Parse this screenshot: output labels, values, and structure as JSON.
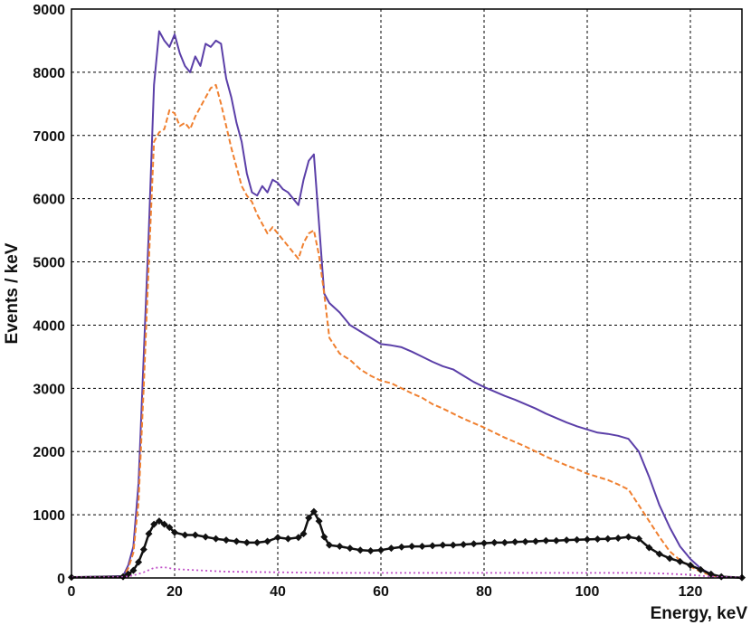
{
  "chart_data": {
    "type": "line",
    "title": "",
    "xlabel": "Energy, keV",
    "ylabel": "Events / keV",
    "xlim": [
      0,
      130
    ],
    "ylim": [
      0,
      9000
    ],
    "x_ticks": [
      0,
      20,
      40,
      60,
      80,
      100,
      120
    ],
    "y_ticks": [
      0,
      1000,
      2000,
      3000,
      4000,
      5000,
      6000,
      7000,
      8000,
      9000
    ],
    "grid": true,
    "legend": "none",
    "series": [
      {
        "color": "#5b3fa8",
        "style": "solid",
        "marker": "none",
        "points": [
          [
            0,
            10
          ],
          [
            10,
            30
          ],
          [
            11,
            200
          ],
          [
            12,
            500
          ],
          [
            13,
            1500
          ],
          [
            14,
            3500
          ],
          [
            15,
            5500
          ],
          [
            16,
            7800
          ],
          [
            17,
            8650
          ],
          [
            18,
            8500
          ],
          [
            19,
            8400
          ],
          [
            20,
            8600
          ],
          [
            21,
            8300
          ],
          [
            22,
            8100
          ],
          [
            23,
            8000
          ],
          [
            24,
            8250
          ],
          [
            25,
            8100
          ],
          [
            26,
            8450
          ],
          [
            27,
            8400
          ],
          [
            28,
            8500
          ],
          [
            29,
            8450
          ],
          [
            30,
            7900
          ],
          [
            31,
            7600
          ],
          [
            32,
            7200
          ],
          [
            33,
            6900
          ],
          [
            34,
            6400
          ],
          [
            35,
            6100
          ],
          [
            36,
            6050
          ],
          [
            37,
            6200
          ],
          [
            38,
            6100
          ],
          [
            39,
            6300
          ],
          [
            40,
            6250
          ],
          [
            41,
            6150
          ],
          [
            42,
            6100
          ],
          [
            43,
            6000
          ],
          [
            44,
            5900
          ],
          [
            45,
            6300
          ],
          [
            46,
            6600
          ],
          [
            47,
            6700
          ],
          [
            48,
            5600
          ],
          [
            49,
            4500
          ],
          [
            50,
            4350
          ],
          [
            52,
            4200
          ],
          [
            54,
            4000
          ],
          [
            56,
            3900
          ],
          [
            58,
            3800
          ],
          [
            60,
            3700
          ],
          [
            62,
            3680
          ],
          [
            64,
            3650
          ],
          [
            66,
            3580
          ],
          [
            68,
            3500
          ],
          [
            70,
            3420
          ],
          [
            72,
            3350
          ],
          [
            74,
            3300
          ],
          [
            76,
            3200
          ],
          [
            78,
            3100
          ],
          [
            80,
            3020
          ],
          [
            82,
            2950
          ],
          [
            84,
            2880
          ],
          [
            86,
            2820
          ],
          [
            88,
            2750
          ],
          [
            90,
            2680
          ],
          [
            92,
            2600
          ],
          [
            94,
            2530
          ],
          [
            96,
            2460
          ],
          [
            98,
            2400
          ],
          [
            100,
            2350
          ],
          [
            102,
            2300
          ],
          [
            104,
            2280
          ],
          [
            106,
            2250
          ],
          [
            108,
            2200
          ],
          [
            110,
            2000
          ],
          [
            112,
            1600
          ],
          [
            114,
            1150
          ],
          [
            116,
            800
          ],
          [
            118,
            500
          ],
          [
            120,
            300
          ],
          [
            122,
            150
          ],
          [
            124,
            60
          ],
          [
            126,
            20
          ],
          [
            130,
            5
          ]
        ]
      },
      {
        "color": "#f08030",
        "style": "dashed",
        "marker": "none",
        "points": [
          [
            0,
            10
          ],
          [
            10,
            20
          ],
          [
            11,
            150
          ],
          [
            12,
            400
          ],
          [
            13,
            1200
          ],
          [
            14,
            3000
          ],
          [
            15,
            5000
          ],
          [
            16,
            6900
          ],
          [
            17,
            7050
          ],
          [
            18,
            7100
          ],
          [
            19,
            7400
          ],
          [
            20,
            7350
          ],
          [
            21,
            7150
          ],
          [
            22,
            7200
          ],
          [
            23,
            7100
          ],
          [
            24,
            7300
          ],
          [
            25,
            7450
          ],
          [
            26,
            7600
          ],
          [
            27,
            7750
          ],
          [
            28,
            7800
          ],
          [
            29,
            7500
          ],
          [
            30,
            7150
          ],
          [
            31,
            6800
          ],
          [
            32,
            6500
          ],
          [
            33,
            6200
          ],
          [
            34,
            6050
          ],
          [
            35,
            5950
          ],
          [
            36,
            5750
          ],
          [
            37,
            5600
          ],
          [
            38,
            5450
          ],
          [
            39,
            5550
          ],
          [
            40,
            5450
          ],
          [
            41,
            5350
          ],
          [
            42,
            5250
          ],
          [
            43,
            5150
          ],
          [
            44,
            5050
          ],
          [
            45,
            5300
          ],
          [
            46,
            5450
          ],
          [
            47,
            5500
          ],
          [
            48,
            5100
          ],
          [
            49,
            4500
          ],
          [
            50,
            3800
          ],
          [
            52,
            3550
          ],
          [
            54,
            3450
          ],
          [
            56,
            3300
          ],
          [
            58,
            3200
          ],
          [
            60,
            3120
          ],
          [
            62,
            3080
          ],
          [
            64,
            3000
          ],
          [
            66,
            2920
          ],
          [
            68,
            2850
          ],
          [
            70,
            2750
          ],
          [
            72,
            2680
          ],
          [
            74,
            2600
          ],
          [
            76,
            2520
          ],
          [
            78,
            2450
          ],
          [
            80,
            2380
          ],
          [
            82,
            2300
          ],
          [
            84,
            2220
          ],
          [
            86,
            2150
          ],
          [
            88,
            2080
          ],
          [
            90,
            2000
          ],
          [
            92,
            1920
          ],
          [
            94,
            1850
          ],
          [
            96,
            1780
          ],
          [
            98,
            1720
          ],
          [
            100,
            1650
          ],
          [
            102,
            1600
          ],
          [
            104,
            1550
          ],
          [
            106,
            1480
          ],
          [
            108,
            1400
          ],
          [
            110,
            1150
          ],
          [
            112,
            900
          ],
          [
            114,
            650
          ],
          [
            116,
            420
          ],
          [
            118,
            280
          ],
          [
            120,
            180
          ],
          [
            122,
            100
          ],
          [
            124,
            40
          ],
          [
            126,
            15
          ],
          [
            130,
            5
          ]
        ]
      },
      {
        "color": "#111111",
        "style": "solid",
        "marker": "diamond",
        "points": [
          [
            0,
            10
          ],
          [
            10,
            20
          ],
          [
            11,
            60
          ],
          [
            12,
            120
          ],
          [
            13,
            250
          ],
          [
            14,
            450
          ],
          [
            15,
            700
          ],
          [
            16,
            850
          ],
          [
            17,
            900
          ],
          [
            18,
            850
          ],
          [
            19,
            800
          ],
          [
            20,
            720
          ],
          [
            22,
            680
          ],
          [
            24,
            680
          ],
          [
            26,
            650
          ],
          [
            28,
            620
          ],
          [
            30,
            600
          ],
          [
            32,
            580
          ],
          [
            34,
            560
          ],
          [
            36,
            560
          ],
          [
            38,
            580
          ],
          [
            40,
            640
          ],
          [
            42,
            620
          ],
          [
            44,
            640
          ],
          [
            45,
            700
          ],
          [
            46,
            950
          ],
          [
            47,
            1050
          ],
          [
            48,
            900
          ],
          [
            49,
            650
          ],
          [
            50,
            520
          ],
          [
            52,
            500
          ],
          [
            54,
            470
          ],
          [
            56,
            440
          ],
          [
            58,
            430
          ],
          [
            60,
            440
          ],
          [
            62,
            470
          ],
          [
            64,
            490
          ],
          [
            66,
            500
          ],
          [
            68,
            500
          ],
          [
            70,
            510
          ],
          [
            72,
            520
          ],
          [
            74,
            520
          ],
          [
            76,
            530
          ],
          [
            78,
            540
          ],
          [
            80,
            550
          ],
          [
            82,
            560
          ],
          [
            84,
            560
          ],
          [
            86,
            570
          ],
          [
            88,
            575
          ],
          [
            90,
            580
          ],
          [
            92,
            590
          ],
          [
            94,
            590
          ],
          [
            96,
            600
          ],
          [
            98,
            605
          ],
          [
            100,
            610
          ],
          [
            102,
            615
          ],
          [
            104,
            620
          ],
          [
            106,
            630
          ],
          [
            108,
            650
          ],
          [
            110,
            620
          ],
          [
            112,
            480
          ],
          [
            114,
            380
          ],
          [
            116,
            310
          ],
          [
            118,
            260
          ],
          [
            120,
            200
          ],
          [
            122,
            130
          ],
          [
            124,
            60
          ],
          [
            126,
            20
          ],
          [
            130,
            5
          ]
        ]
      },
      {
        "color": "#c050c8",
        "style": "dotted",
        "marker": "none",
        "points": [
          [
            0,
            10
          ],
          [
            10,
            15
          ],
          [
            12,
            40
          ],
          [
            14,
            90
          ],
          [
            16,
            160
          ],
          [
            18,
            170
          ],
          [
            20,
            140
          ],
          [
            25,
            120
          ],
          [
            30,
            100
          ],
          [
            40,
            90
          ],
          [
            50,
            80
          ],
          [
            60,
            80
          ],
          [
            70,
            80
          ],
          [
            80,
            80
          ],
          [
            90,
            80
          ],
          [
            100,
            80
          ],
          [
            110,
            80
          ],
          [
            115,
            70
          ],
          [
            120,
            50
          ],
          [
            124,
            20
          ],
          [
            130,
            5
          ]
        ]
      }
    ]
  }
}
